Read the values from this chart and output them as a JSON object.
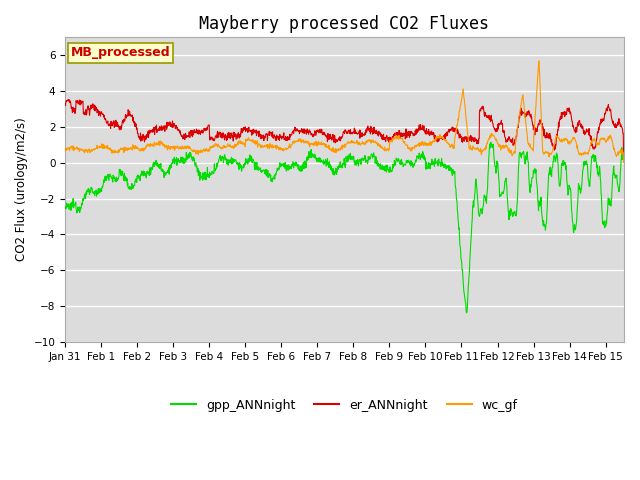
{
  "title": "Mayberry processed CO2 Fluxes",
  "ylabel": "CO2 Flux (urology/m2/s)",
  "xlabel": "",
  "ylim": [
    -10,
    7
  ],
  "xlim_days": [
    0,
    15.5
  ],
  "plot_bg": "#dcdcdc",
  "figure_bg": "#ffffff",
  "grid_color": "#ffffff",
  "series": {
    "gpp_ANNnight": {
      "color": "#00dd00",
      "label": "gpp_ANNnight"
    },
    "er_ANNnight": {
      "color": "#dd0000",
      "label": "er_ANNnight"
    },
    "wc_gf": {
      "color": "#ff9900",
      "label": "wc_gf"
    }
  },
  "xtick_labels": [
    "Jan 31",
    "Feb 1",
    "Feb 2",
    "Feb 3",
    "Feb 4",
    "Feb 5",
    "Feb 6",
    "Feb 7",
    "Feb 8",
    "Feb 9",
    "Feb 10",
    "Feb 11",
    "Feb 12",
    "Feb 13",
    "Feb 14",
    "Feb 15"
  ],
  "annotation_text": "MB_processed",
  "annotation_color": "#cc0000",
  "annotation_bg": "#ffffcc",
  "annotation_edge": "#999900",
  "linewidth": 0.8,
  "title_fontsize": 12,
  "legend_fontsize": 9,
  "tick_fontsize": 7.5
}
